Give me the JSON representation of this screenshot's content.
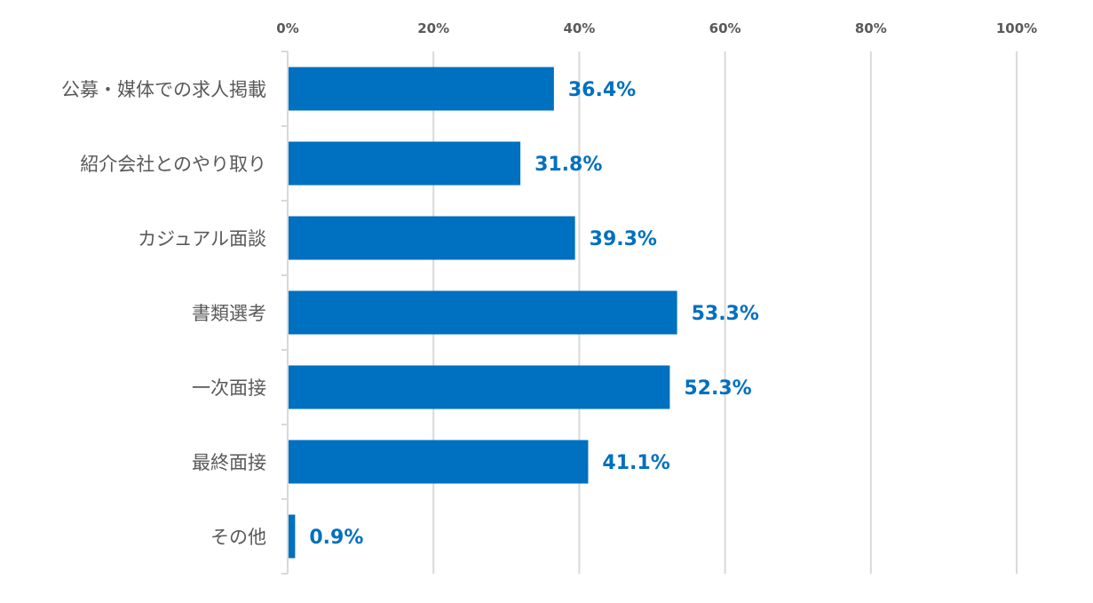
{
  "chart_data": {
    "type": "bar",
    "orientation": "horizontal",
    "categories": [
      "公募・媒体での求人掲載",
      "紹介会社とのやり取り",
      "カジュアル面談",
      "書類選考",
      "一次面接",
      "最終面接",
      "その他"
    ],
    "values": [
      36.4,
      31.8,
      39.3,
      53.3,
      52.3,
      41.1,
      0.9
    ],
    "value_labels": [
      "36.4%",
      "31.8%",
      "39.3%",
      "53.3%",
      "52.3%",
      "41.1%",
      "0.9%"
    ],
    "x_ticks": [
      0,
      20,
      40,
      60,
      80,
      100
    ],
    "x_tick_labels": [
      "0%",
      "20%",
      "40%",
      "60%",
      "80%",
      "100%"
    ],
    "xlim": [
      0,
      100
    ],
    "x_axis_position": "top",
    "grid": true,
    "bar_color": "#0070c0",
    "label_color": "#0070c0"
  }
}
